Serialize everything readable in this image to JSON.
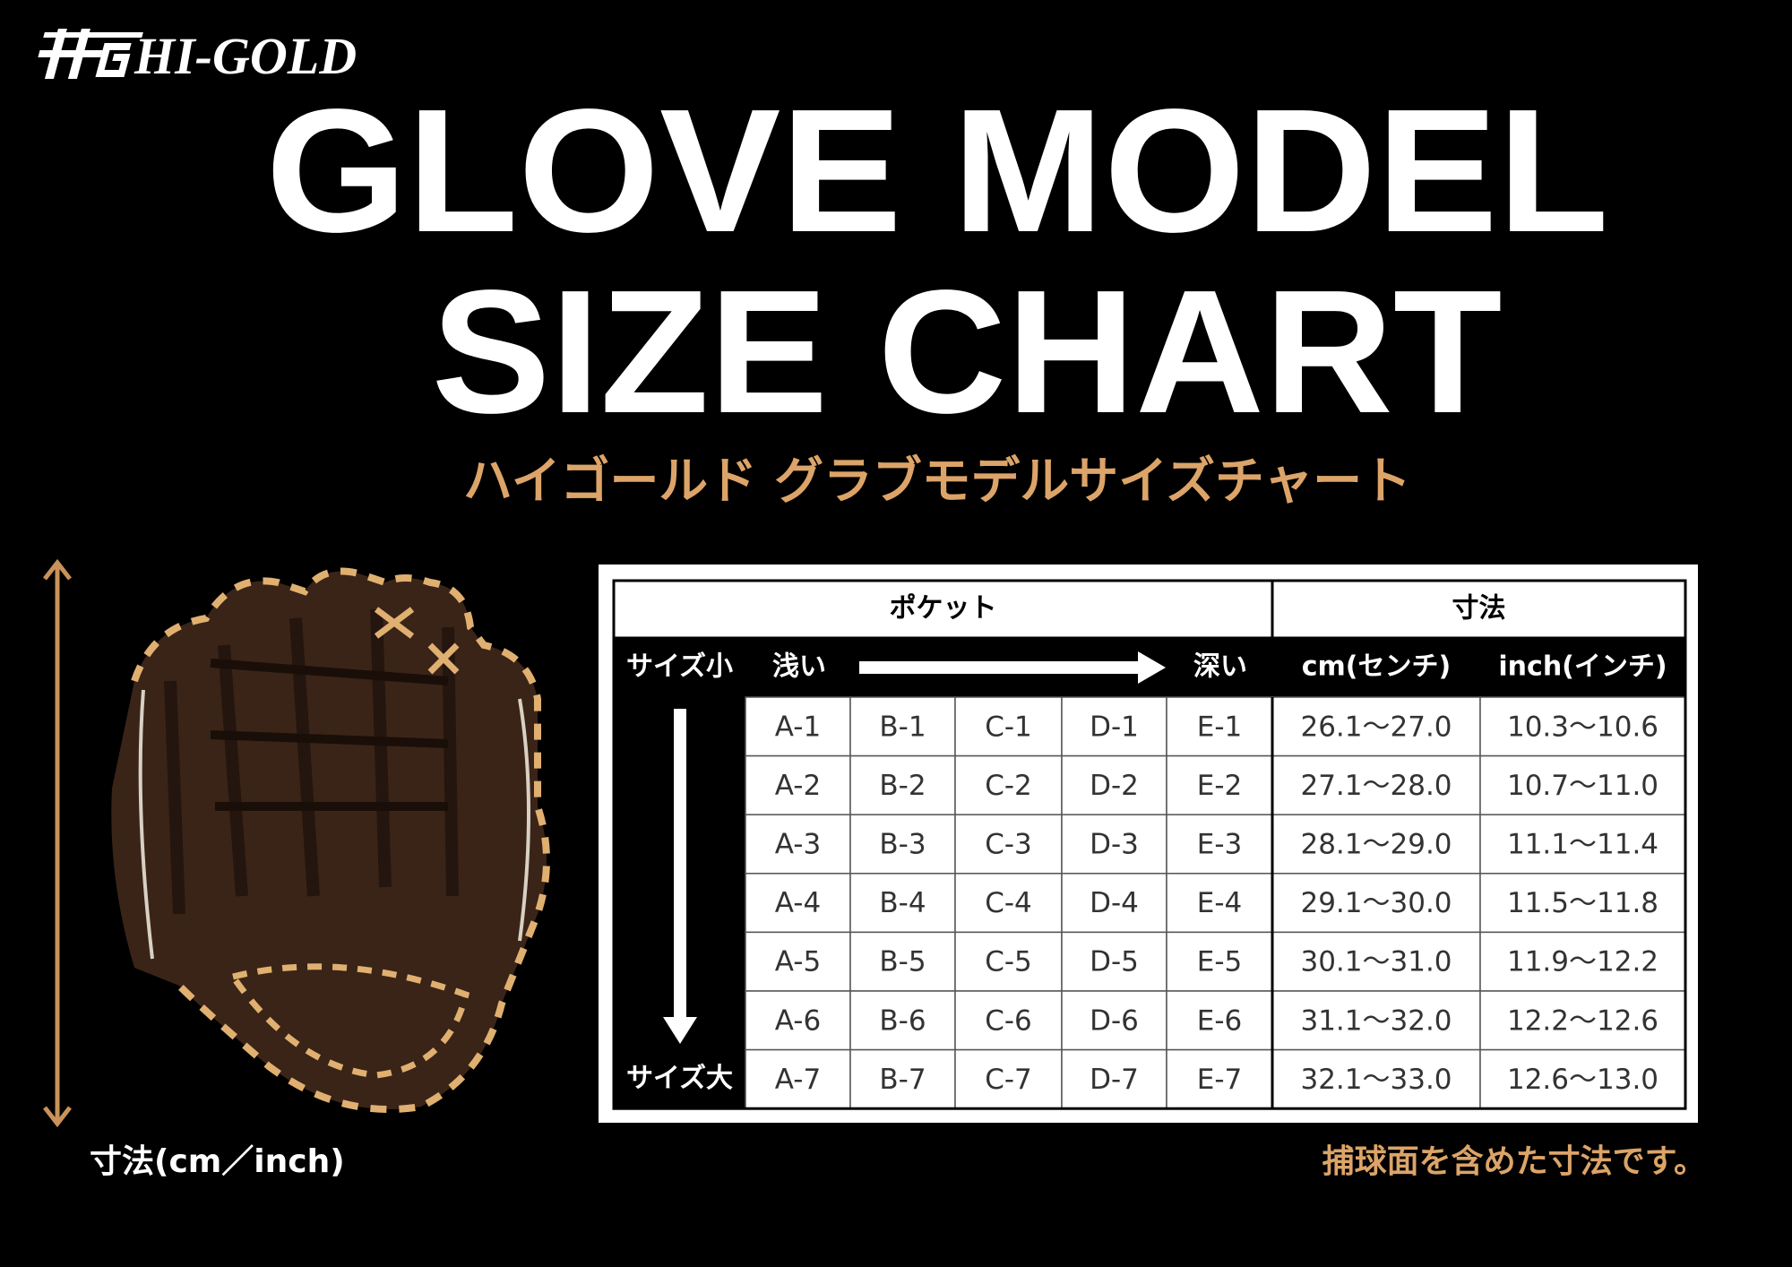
{
  "brand": "HI-GOLD",
  "title": {
    "line1": "GLOVE MODEL",
    "line2": "SIZE CHART"
  },
  "subtitle": "ハイゴールド グラブモデルサイズチャート",
  "table": {
    "header": {
      "pocket": "ポケット",
      "size": "寸法"
    },
    "subheader": {
      "small": "サイズ小",
      "shallow": "浅い",
      "deep": "深い",
      "cm": "cm(センチ)",
      "inch": "inch(インチ)"
    },
    "large": "サイズ大",
    "rows": [
      [
        "A-1",
        "B-1",
        "C-1",
        "D-1",
        "E-1",
        "26.1～27.0",
        "10.3～10.6"
      ],
      [
        "A-2",
        "B-2",
        "C-2",
        "D-2",
        "E-2",
        "27.1～28.0",
        "10.7～11.0"
      ],
      [
        "A-3",
        "B-3",
        "C-3",
        "D-3",
        "E-3",
        "28.1～29.0",
        "11.1～11.4"
      ],
      [
        "A-4",
        "B-4",
        "C-4",
        "D-4",
        "E-4",
        "29.1～30.0",
        "11.5～11.8"
      ],
      [
        "A-5",
        "B-5",
        "C-5",
        "D-5",
        "E-5",
        "30.1～31.0",
        "11.9～12.2"
      ],
      [
        "A-6",
        "B-6",
        "C-6",
        "D-6",
        "E-6",
        "31.1～32.0",
        "12.2～12.6"
      ],
      [
        "A-7",
        "B-7",
        "C-7",
        "D-7",
        "E-7",
        "32.1～33.0",
        "12.6～13.0"
      ]
    ]
  },
  "dimension_label": "寸法(cm／inch)",
  "note": "捕球面を含めた寸法です。"
}
